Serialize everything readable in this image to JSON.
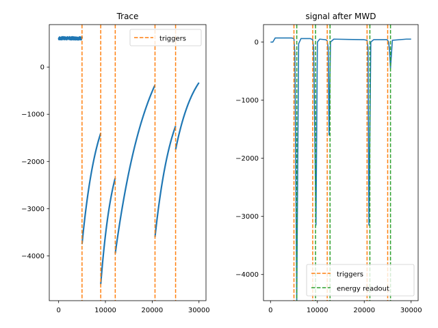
{
  "chart_data": [
    {
      "type": "line",
      "title": "Trace",
      "xlabel": "",
      "ylabel": "",
      "xlim": [
        -2000,
        31500
      ],
      "ylim": [
        -4950,
        900
      ],
      "xticks": [
        0,
        10000,
        20000,
        30000
      ],
      "xtick_labels": [
        "0",
        "10000",
        "20000",
        "30000"
      ],
      "yticks": [
        0,
        -1000,
        -2000,
        -3000,
        -4000
      ],
      "ytick_labels": [
        "0",
        "−1000",
        "−2000",
        "−3000",
        "−4000"
      ],
      "grid": false,
      "legend": {
        "placement": "top-right",
        "entries": [
          {
            "label": "triggers",
            "color": "#ff7f0e",
            "style": "dashed"
          }
        ]
      },
      "series": [
        {
          "color": "#1f77b4",
          "segments": [
            {
              "x": [
                0,
                5000
              ],
              "y": [
                610,
                610
              ],
              "noise": 30
            },
            {
              "x": [
                5000,
                9000
              ],
              "y": [
                -3750,
                -1400
              ],
              "curve": "exp"
            },
            {
              "x": [
                9000,
                12100
              ],
              "y": [
                -4600,
                -2350
              ],
              "curve": "exp"
            },
            {
              "x": [
                12100,
                20600
              ],
              "y": [
                -3950,
                -380
              ],
              "curve": "exp"
            },
            {
              "x": [
                20600,
                25000
              ],
              "y": [
                -3600,
                -1250
              ],
              "curve": "exp"
            },
            {
              "x": [
                25000,
                30000
              ],
              "y": [
                -1750,
                -330
              ],
              "curve": "exp"
            }
          ]
        }
      ],
      "vlines": [
        {
          "name": "triggers",
          "color": "#ff7f0e",
          "x": [
            5000,
            9000,
            12100,
            20600,
            25000
          ]
        }
      ]
    },
    {
      "type": "line",
      "title": "signal after MWD",
      "xlabel": "",
      "ylabel": "",
      "xlim": [
        -1500,
        31500
      ],
      "ylim": [
        -4450,
        300
      ],
      "xticks": [
        0,
        10000,
        20000,
        30000
      ],
      "xtick_labels": [
        "0",
        "10000",
        "20000",
        "30000"
      ],
      "yticks": [
        0,
        -1000,
        -2000,
        -3000,
        -4000
      ],
      "ytick_labels": [
        "0",
        "−1000",
        "−2000",
        "−3000",
        "−4000"
      ],
      "grid": false,
      "legend": {
        "placement": "bottom-right",
        "entries": [
          {
            "label": "triggers",
            "color": "#ff7f0e",
            "style": "dashed"
          },
          {
            "label": "energy readout",
            "color": "#2ca02c",
            "style": "dashed"
          }
        ]
      },
      "series": [
        {
          "color": "#1f77b4",
          "x": [
            0,
            500,
            1000,
            2000,
            4500,
            5000,
            5200,
            5600,
            6000,
            6500,
            8500,
            9000,
            9200,
            9700,
            10000,
            10500,
            11800,
            12100,
            12300,
            12500,
            12800,
            13500,
            20000,
            20600,
            20800,
            21000,
            21400,
            22000,
            24800,
            25000,
            25200,
            25400,
            25600,
            26000,
            29000,
            30000
          ],
          "y": [
            0,
            0,
            70,
            70,
            70,
            60,
            -200,
            -4450,
            -30,
            60,
            60,
            40,
            -100,
            -3150,
            0,
            50,
            40,
            20,
            -100,
            -1600,
            0,
            50,
            40,
            30,
            -100,
            -3150,
            0,
            40,
            40,
            30,
            0,
            -150,
            -450,
            30,
            50,
            50
          ]
        }
      ],
      "vlines": [
        {
          "name": "triggers",
          "color": "#ff7f0e",
          "x": [
            5000,
            9000,
            12100,
            20600,
            25000
          ]
        },
        {
          "name": "energy readout",
          "color": "#2ca02c",
          "x": [
            5600,
            9600,
            12700,
            21200,
            25600
          ]
        }
      ]
    }
  ]
}
